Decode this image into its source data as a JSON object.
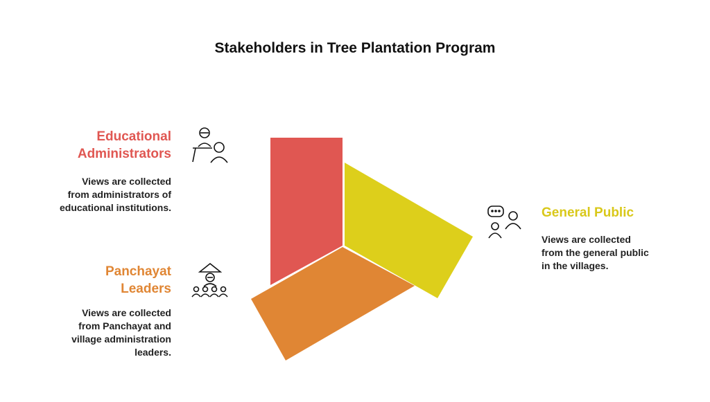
{
  "title": "Stakeholders in Tree Plantation Program",
  "stakeholders": [
    {
      "label_lines": [
        "Educational",
        "Administrators"
      ],
      "description_lines": [
        "Views are collected",
        "from administrators of",
        "educational institutions."
      ]
    },
    {
      "label_lines": [
        "General Public"
      ],
      "description_lines": [
        "Views are collected",
        "from the general public",
        "in the villages."
      ]
    },
    {
      "label_lines": [
        "Panchayat",
        "Leaders"
      ],
      "description_lines": [
        "Views are collected",
        "from Panchayat and",
        "village administration",
        "leaders."
      ]
    }
  ]
}
